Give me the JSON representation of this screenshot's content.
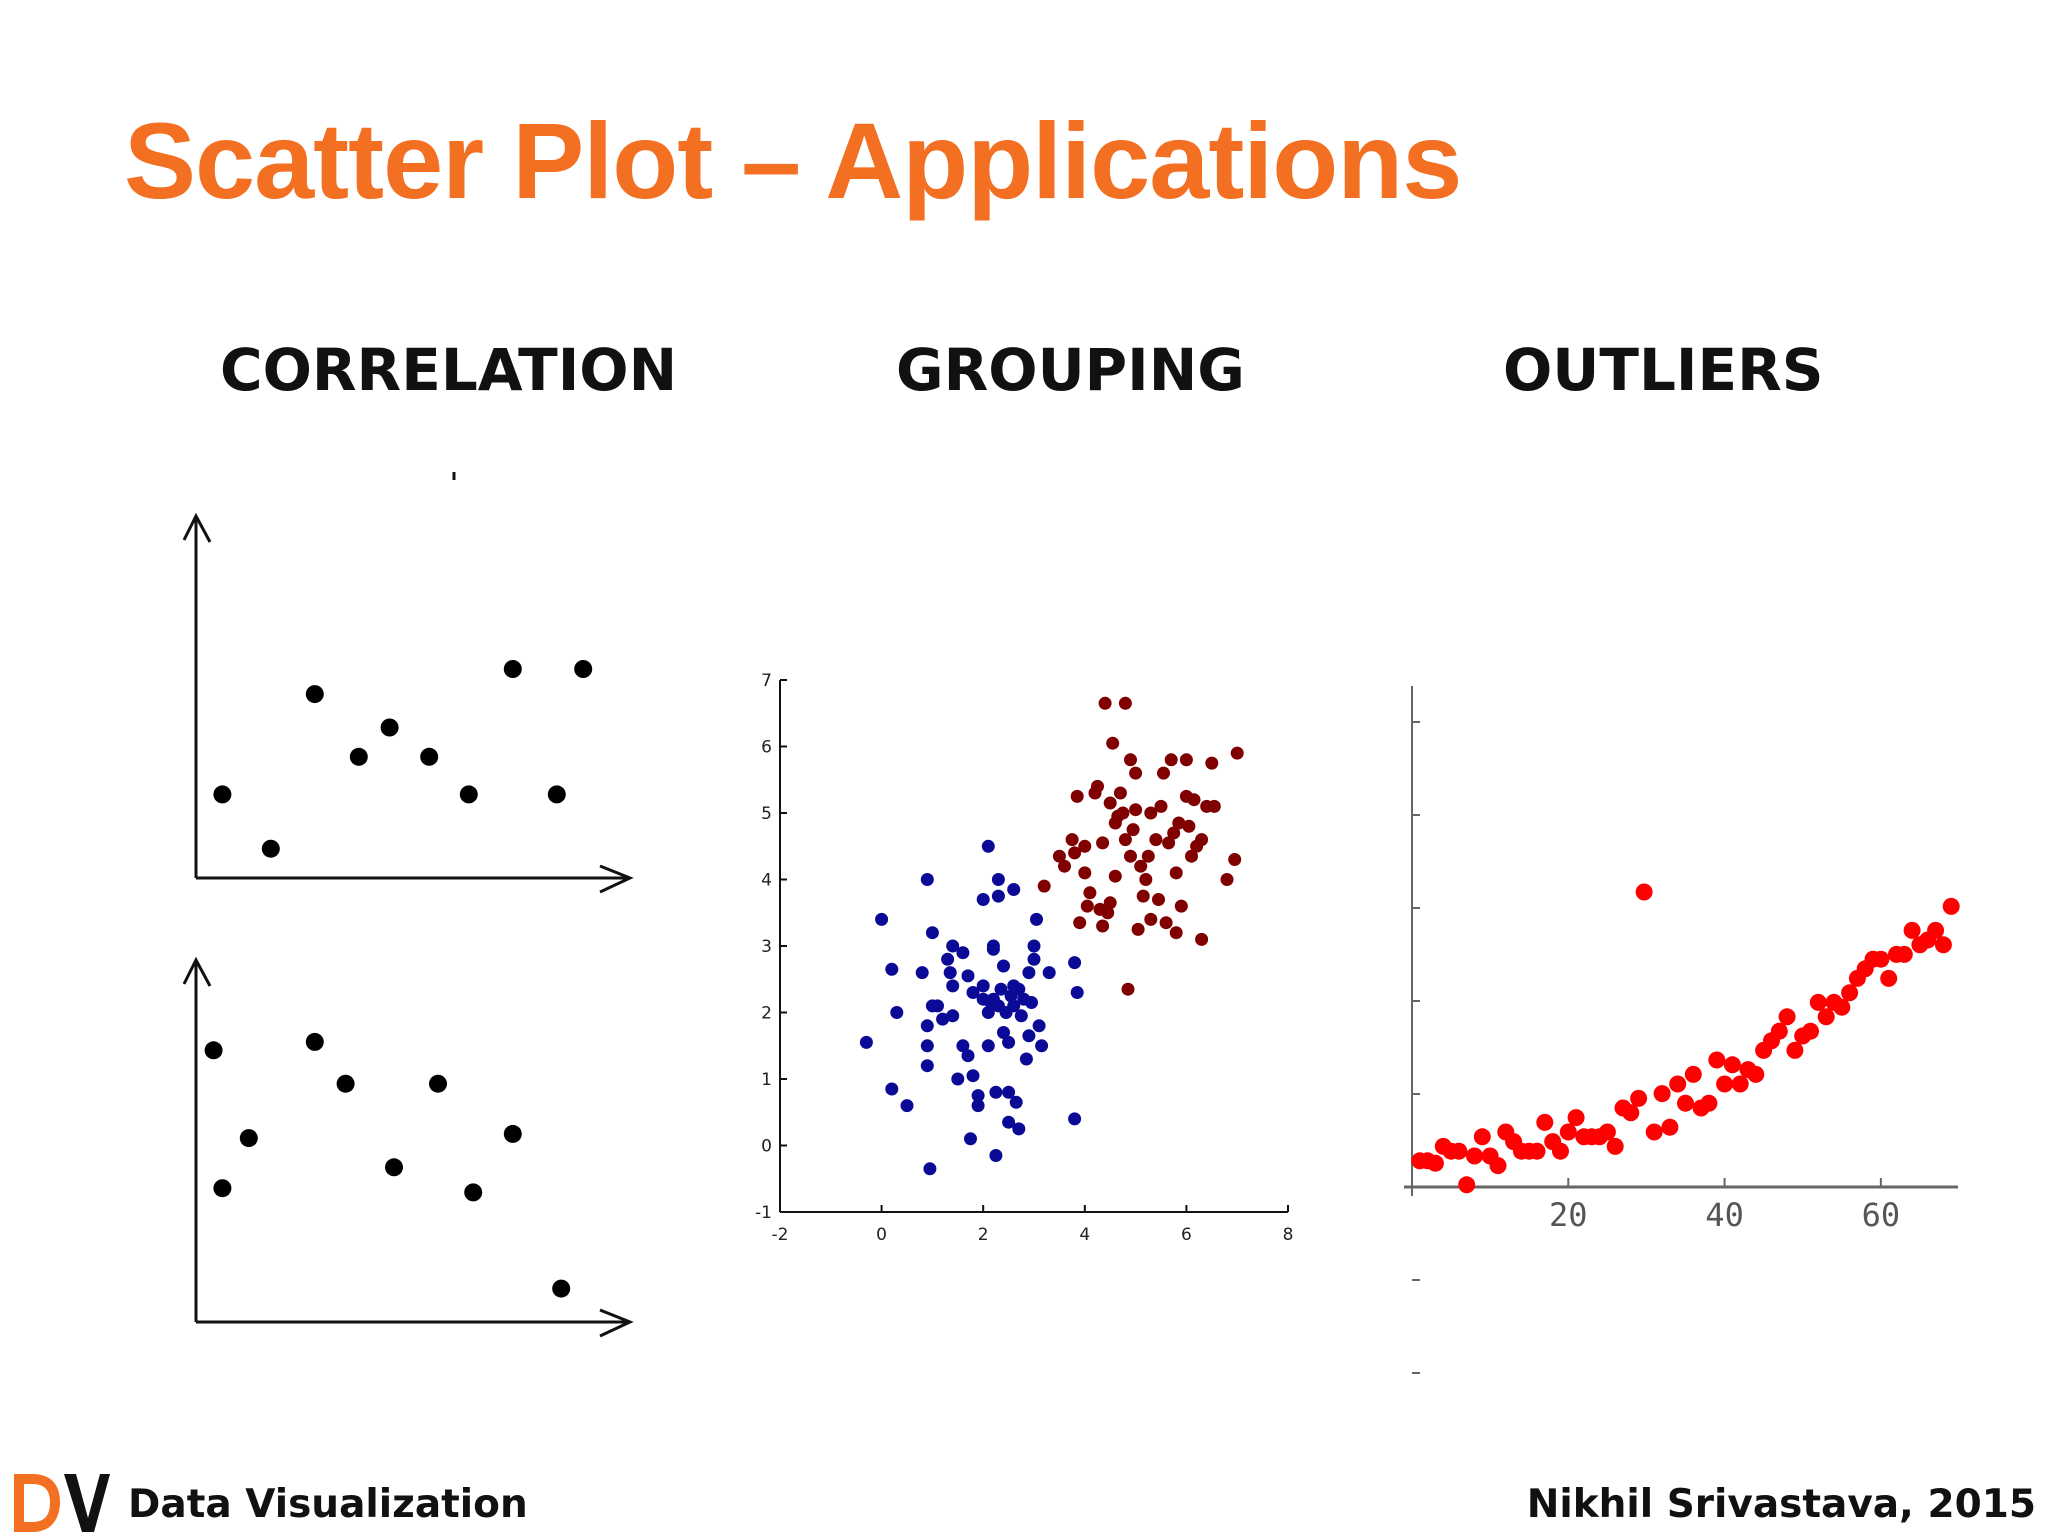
{
  "slide": {
    "title": "Scatter Plot – Applications",
    "title_color": "#F36F21"
  },
  "sections": {
    "correlation": "CORRELATION",
    "grouping": "GROUPING",
    "outliers": "OUTLIERS"
  },
  "footer": {
    "logo_icon": "dv-logo-icon",
    "left_text": "Data Visualization",
    "right_text": "Nikhil Srivastava, 2015"
  },
  "chart_data": [
    {
      "type": "scatter",
      "name": "correlation-top",
      "point_color": "#000000",
      "xlim": [
        0,
        10
      ],
      "ylim": [
        0,
        10
      ],
      "points": [
        [
          0.6,
          2.0
        ],
        [
          1.7,
          0.7
        ],
        [
          2.7,
          4.4
        ],
        [
          3.7,
          2.9
        ],
        [
          4.4,
          3.6
        ],
        [
          5.3,
          2.9
        ],
        [
          6.2,
          2.0
        ],
        [
          7.2,
          5.0
        ],
        [
          8.2,
          2.0
        ],
        [
          8.8,
          5.0
        ]
      ]
    },
    {
      "type": "scatter",
      "name": "correlation-bottom",
      "point_color": "#000000",
      "xlim": [
        0,
        10
      ],
      "ylim": [
        0,
        10
      ],
      "points": [
        [
          0.4,
          6.5
        ],
        [
          0.6,
          3.2
        ],
        [
          1.2,
          4.4
        ],
        [
          2.7,
          6.7
        ],
        [
          3.4,
          5.7
        ],
        [
          4.5,
          3.7
        ],
        [
          5.5,
          5.7
        ],
        [
          6.3,
          3.1
        ],
        [
          7.2,
          4.5
        ],
        [
          8.3,
          0.8
        ]
      ]
    },
    {
      "type": "scatter",
      "name": "grouping",
      "xlim": [
        -2,
        8
      ],
      "ylim": [
        -1,
        7
      ],
      "x_ticks": [
        "-2",
        "0",
        "2",
        "4",
        "6",
        "8"
      ],
      "y_ticks": [
        "-1",
        "0",
        "1",
        "2",
        "3",
        "4",
        "5",
        "6",
        "7"
      ],
      "series": [
        {
          "color": "#0A0A96",
          "points": [
            [
              -0.3,
              1.55
            ],
            [
              0.0,
              3.4
            ],
            [
              0.2,
              2.65
            ],
            [
              0.2,
              0.85
            ],
            [
              0.3,
              2.0
            ],
            [
              0.5,
              0.6
            ],
            [
              0.8,
              2.6
            ],
            [
              0.9,
              4.0
            ],
            [
              0.9,
              1.8
            ],
            [
              0.9,
              1.5
            ],
            [
              0.9,
              1.2
            ],
            [
              0.95,
              -0.35
            ],
            [
              1.0,
              2.1
            ],
            [
              1.0,
              3.2
            ],
            [
              1.1,
              2.1
            ],
            [
              1.2,
              1.9
            ],
            [
              1.3,
              2.8
            ],
            [
              1.35,
              2.6
            ],
            [
              1.4,
              3.0
            ],
            [
              1.4,
              2.4
            ],
            [
              1.4,
              1.95
            ],
            [
              1.5,
              1.0
            ],
            [
              1.6,
              1.5
            ],
            [
              1.6,
              2.9
            ],
            [
              1.7,
              2.55
            ],
            [
              1.7,
              1.35
            ],
            [
              1.75,
              0.1
            ],
            [
              1.8,
              2.3
            ],
            [
              1.8,
              1.05
            ],
            [
              1.9,
              0.75
            ],
            [
              1.9,
              0.6
            ],
            [
              2.0,
              3.7
            ],
            [
              2.0,
              2.2
            ],
            [
              2.0,
              2.4
            ],
            [
              2.1,
              4.5
            ],
            [
              2.1,
              1.5
            ],
            [
              2.1,
              2.0
            ],
            [
              2.15,
              2.15
            ],
            [
              2.2,
              3.0
            ],
            [
              2.2,
              2.95
            ],
            [
              2.2,
              2.2
            ],
            [
              2.25,
              -0.15
            ],
            [
              2.25,
              0.8
            ],
            [
              2.3,
              4.0
            ],
            [
              2.3,
              3.75
            ],
            [
              2.3,
              2.1
            ],
            [
              2.35,
              2.35
            ],
            [
              2.4,
              2.7
            ],
            [
              2.4,
              1.7
            ],
            [
              2.45,
              2.0
            ],
            [
              2.5,
              1.55
            ],
            [
              2.5,
              0.8
            ],
            [
              2.5,
              0.35
            ],
            [
              2.55,
              2.25
            ],
            [
              2.6,
              3.85
            ],
            [
              2.6,
              2.4
            ],
            [
              2.6,
              2.1
            ],
            [
              2.65,
              0.65
            ],
            [
              2.7,
              2.35
            ],
            [
              2.7,
              0.25
            ],
            [
              2.75,
              1.95
            ],
            [
              2.8,
              2.2
            ],
            [
              2.85,
              1.3
            ],
            [
              2.9,
              2.6
            ],
            [
              2.9,
              1.65
            ],
            [
              2.95,
              2.15
            ],
            [
              3.0,
              3.0
            ],
            [
              3.0,
              2.8
            ],
            [
              3.05,
              3.4
            ],
            [
              3.1,
              1.8
            ],
            [
              3.15,
              1.5
            ],
            [
              3.3,
              2.6
            ],
            [
              3.8,
              2.75
            ],
            [
              3.85,
              2.3
            ],
            [
              3.8,
              0.4
            ]
          ]
        },
        {
          "color": "#800000",
          "points": [
            [
              3.2,
              3.9
            ],
            [
              3.5,
              4.35
            ],
            [
              3.6,
              4.2
            ],
            [
              3.75,
              4.6
            ],
            [
              3.8,
              4.4
            ],
            [
              3.85,
              5.25
            ],
            [
              3.9,
              3.35
            ],
            [
              4.0,
              4.5
            ],
            [
              4.0,
              4.1
            ],
            [
              4.05,
              3.6
            ],
            [
              4.1,
              3.8
            ],
            [
              4.2,
              5.3
            ],
            [
              4.25,
              5.4
            ],
            [
              4.3,
              3.55
            ],
            [
              4.35,
              4.55
            ],
            [
              4.35,
              3.3
            ],
            [
              4.4,
              6.65
            ],
            [
              4.45,
              3.5
            ],
            [
              4.5,
              3.65
            ],
            [
              4.5,
              5.15
            ],
            [
              4.55,
              6.05
            ],
            [
              4.6,
              4.05
            ],
            [
              4.6,
              4.85
            ],
            [
              4.65,
              4.95
            ],
            [
              4.7,
              5.3
            ],
            [
              4.75,
              5.0
            ],
            [
              4.8,
              6.65
            ],
            [
              4.8,
              4.6
            ],
            [
              4.85,
              2.35
            ],
            [
              4.9,
              5.8
            ],
            [
              4.9,
              4.35
            ],
            [
              4.95,
              4.75
            ],
            [
              5.0,
              5.05
            ],
            [
              5.0,
              5.6
            ],
            [
              5.05,
              3.25
            ],
            [
              5.1,
              4.2
            ],
            [
              5.15,
              3.75
            ],
            [
              5.2,
              4.0
            ],
            [
              5.25,
              4.35
            ],
            [
              5.3,
              5.0
            ],
            [
              5.3,
              3.4
            ],
            [
              5.4,
              4.6
            ],
            [
              5.45,
              3.7
            ],
            [
              5.5,
              5.1
            ],
            [
              5.55,
              5.6
            ],
            [
              5.6,
              3.35
            ],
            [
              5.65,
              4.55
            ],
            [
              5.7,
              5.8
            ],
            [
              5.75,
              4.7
            ],
            [
              5.8,
              4.1
            ],
            [
              5.8,
              3.2
            ],
            [
              5.85,
              4.85
            ],
            [
              5.9,
              3.6
            ],
            [
              6.0,
              5.8
            ],
            [
              6.0,
              5.25
            ],
            [
              6.05,
              4.8
            ],
            [
              6.1,
              4.35
            ],
            [
              6.15,
              5.2
            ],
            [
              6.2,
              4.5
            ],
            [
              6.3,
              3.1
            ],
            [
              6.3,
              4.6
            ],
            [
              6.4,
              5.1
            ],
            [
              6.5,
              5.75
            ],
            [
              6.55,
              5.1
            ],
            [
              6.8,
              4.0
            ],
            [
              6.95,
              4.3
            ],
            [
              7.0,
              5.9
            ]
          ]
        }
      ]
    },
    {
      "type": "scatter",
      "name": "outliers",
      "point_color": "#FF0000",
      "xlim": [
        0,
        70
      ],
      "ylim": [
        0,
        10
      ],
      "x_ticks": [
        "20",
        "40",
        "60"
      ],
      "points": [
        [
          1.0,
          0.4
        ],
        [
          2.0,
          0.4
        ],
        [
          3.0,
          0.35
        ],
        [
          4.0,
          0.7
        ],
        [
          5.0,
          0.6
        ],
        [
          6.0,
          0.6
        ],
        [
          7.0,
          -0.1
        ],
        [
          8.0,
          0.5
        ],
        [
          9.0,
          0.9
        ],
        [
          10.0,
          0.5
        ],
        [
          11.0,
          0.3
        ],
        [
          12.0,
          1.0
        ],
        [
          13.0,
          0.8
        ],
        [
          14.0,
          0.6
        ],
        [
          15.0,
          0.6
        ],
        [
          16.0,
          0.6
        ],
        [
          17.0,
          1.2
        ],
        [
          18.0,
          0.8
        ],
        [
          19.0,
          0.6
        ],
        [
          20.0,
          1.0
        ],
        [
          21.0,
          1.3
        ],
        [
          22.0,
          0.9
        ],
        [
          23.0,
          0.9
        ],
        [
          24.0,
          0.9
        ],
        [
          25.0,
          1.0
        ],
        [
          26.0,
          0.7
        ],
        [
          27.0,
          1.5
        ],
        [
          28.0,
          1.4
        ],
        [
          29.0,
          1.7
        ],
        [
          29.7,
          6.0
        ],
        [
          31.0,
          1.0
        ],
        [
          32.0,
          1.8
        ],
        [
          33.0,
          1.1
        ],
        [
          34.0,
          2.0
        ],
        [
          35.0,
          1.6
        ],
        [
          36.0,
          2.2
        ],
        [
          37.0,
          1.5
        ],
        [
          38.0,
          1.6
        ],
        [
          39.0,
          2.5
        ],
        [
          40.0,
          2.0
        ],
        [
          41.0,
          2.4
        ],
        [
          42.0,
          2.0
        ],
        [
          43.0,
          2.3
        ],
        [
          44.0,
          2.2
        ],
        [
          45.0,
          2.7
        ],
        [
          46.0,
          2.9
        ],
        [
          47.0,
          3.1
        ],
        [
          48.0,
          3.4
        ],
        [
          49.0,
          2.7
        ],
        [
          50.0,
          3.0
        ],
        [
          51.0,
          3.1
        ],
        [
          52.0,
          3.7
        ],
        [
          53.0,
          3.4
        ],
        [
          54.0,
          3.7
        ],
        [
          55.0,
          3.6
        ],
        [
          56.0,
          3.9
        ],
        [
          57.0,
          4.2
        ],
        [
          58.0,
          4.4
        ],
        [
          59.0,
          4.6
        ],
        [
          60.0,
          4.6
        ],
        [
          61.0,
          4.2
        ],
        [
          62.0,
          4.7
        ],
        [
          63.0,
          4.7
        ],
        [
          64.0,
          5.2
        ],
        [
          65.0,
          4.9
        ],
        [
          66.0,
          5.0
        ],
        [
          67.0,
          5.2
        ],
        [
          68.0,
          4.9
        ],
        [
          69.0,
          5.7
        ]
      ]
    }
  ]
}
